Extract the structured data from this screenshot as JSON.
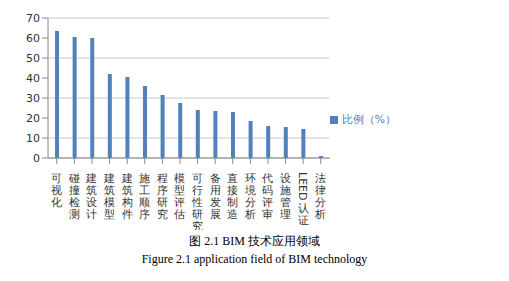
{
  "chart_data": {
    "type": "bar",
    "title": "图 2.1 BIM 技术应用领域",
    "subtitle": "Figure 2.1 application field of BIM technology",
    "categories": [
      "可视化",
      "碰撞检测",
      "建筑设计",
      "建筑模型",
      "建筑构件",
      "施工顺序",
      "程序研究",
      "模型评估",
      "可行性研究",
      "备用发展",
      "直接制造",
      "环境分析",
      "代码评审",
      "设施管理",
      "LEED认证",
      "法律分析"
    ],
    "series": [
      {
        "name": "比例（%）",
        "color": "#4f81bd",
        "values": [
          63.5,
          60.5,
          60,
          42,
          40.5,
          36,
          31.5,
          27.5,
          24,
          23.5,
          23,
          18.5,
          16,
          15.5,
          14.5,
          1
        ]
      }
    ],
    "ylim": [
      0,
      70
    ],
    "yticks": [
      0,
      10,
      20,
      30,
      40,
      50,
      60,
      70
    ],
    "grid": true,
    "legend": "right"
  }
}
